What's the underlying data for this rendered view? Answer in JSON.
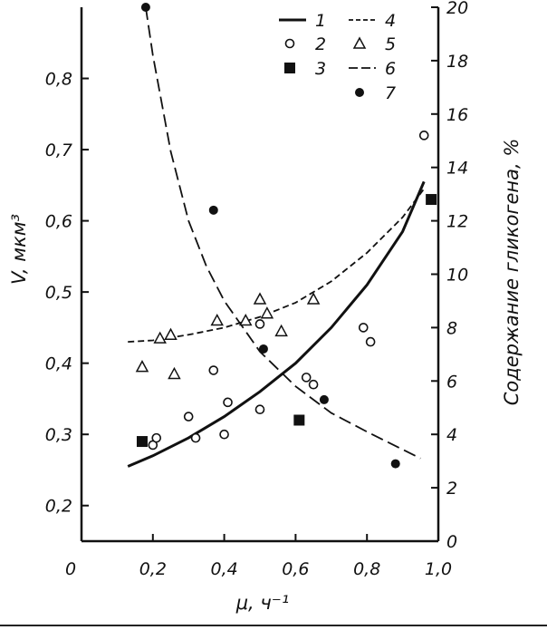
{
  "chart_data": {
    "type": "scatter",
    "title": "",
    "x_axis": {
      "label": "μ, ч⁻¹",
      "lim": [
        0,
        1.0
      ],
      "ticks": [
        0,
        0.2,
        0.4,
        0.6,
        0.8,
        1.0
      ],
      "tick_labels": [
        "0",
        "0,2",
        "0,4",
        "0,6",
        "0,8",
        "1,0"
      ]
    },
    "y_left": {
      "label": "V, мкм³",
      "lim": [
        0.15,
        0.9
      ],
      "ticks": [
        0.2,
        0.3,
        0.4,
        0.5,
        0.6,
        0.7,
        0.8
      ],
      "tick_labels": [
        "0,2",
        "0,3",
        "0,4",
        "0,5",
        "0,6",
        "0,7",
        "0,8"
      ]
    },
    "y_right": {
      "label": "Содержание гликогена, %",
      "lim": [
        0,
        20
      ],
      "ticks": [
        0,
        2,
        4,
        6,
        8,
        10,
        12,
        14,
        16,
        18,
        20
      ],
      "tick_labels": [
        "0",
        "2",
        "4",
        "6",
        "8",
        "10",
        "12",
        "14",
        "16",
        "18",
        "20"
      ]
    },
    "grid": false,
    "legend_position": "top-right",
    "series": [
      {
        "name": "1",
        "kind": "line",
        "style": "solid",
        "axis": "left",
        "x": [
          0.13,
          0.2,
          0.3,
          0.4,
          0.5,
          0.6,
          0.7,
          0.8,
          0.9,
          0.96
        ],
        "y": [
          0.255,
          0.27,
          0.295,
          0.325,
          0.36,
          0.4,
          0.45,
          0.51,
          0.585,
          0.655
        ]
      },
      {
        "name": "2",
        "kind": "points",
        "marker": "open-circle",
        "axis": "left",
        "x": [
          0.2,
          0.21,
          0.3,
          0.32,
          0.37,
          0.4,
          0.41,
          0.5,
          0.5,
          0.63,
          0.65,
          0.79,
          0.81,
          0.96
        ],
        "y": [
          0.285,
          0.295,
          0.325,
          0.295,
          0.39,
          0.3,
          0.345,
          0.335,
          0.455,
          0.38,
          0.37,
          0.45,
          0.43,
          0.72
        ]
      },
      {
        "name": "3",
        "kind": "points",
        "marker": "filled-square",
        "axis": "left",
        "x": [
          0.17,
          0.61,
          0.98
        ],
        "y": [
          0.29,
          0.32,
          0.63
        ]
      },
      {
        "name": "4",
        "kind": "line",
        "style": "dashed",
        "axis": "left",
        "x": [
          0.13,
          0.2,
          0.3,
          0.4,
          0.5,
          0.6,
          0.7,
          0.8,
          0.9,
          0.96
        ],
        "y": [
          0.43,
          0.432,
          0.44,
          0.45,
          0.465,
          0.485,
          0.515,
          0.555,
          0.605,
          0.645
        ]
      },
      {
        "name": "5",
        "kind": "points",
        "marker": "open-triangle",
        "axis": "left",
        "x": [
          0.17,
          0.22,
          0.25,
          0.26,
          0.38,
          0.46,
          0.5,
          0.52,
          0.56,
          0.65
        ],
        "y": [
          0.395,
          0.435,
          0.44,
          0.385,
          0.46,
          0.46,
          0.49,
          0.47,
          0.445,
          0.49
        ]
      },
      {
        "name": "6",
        "kind": "line",
        "style": "long-dash",
        "axis": "right",
        "x": [
          0.18,
          0.2,
          0.25,
          0.3,
          0.35,
          0.4,
          0.5,
          0.6,
          0.7,
          0.8,
          0.95
        ],
        "y": [
          20,
          18.2,
          14.6,
          12.0,
          10.3,
          9.0,
          7.1,
          5.8,
          4.8,
          4.1,
          3.1
        ]
      },
      {
        "name": "7",
        "kind": "points",
        "marker": "filled-circle",
        "axis": "right",
        "x": [
          0.18,
          0.37,
          0.51,
          0.68,
          0.88
        ],
        "y": [
          20,
          12.4,
          7.2,
          5.3,
          2.9
        ]
      }
    ]
  }
}
